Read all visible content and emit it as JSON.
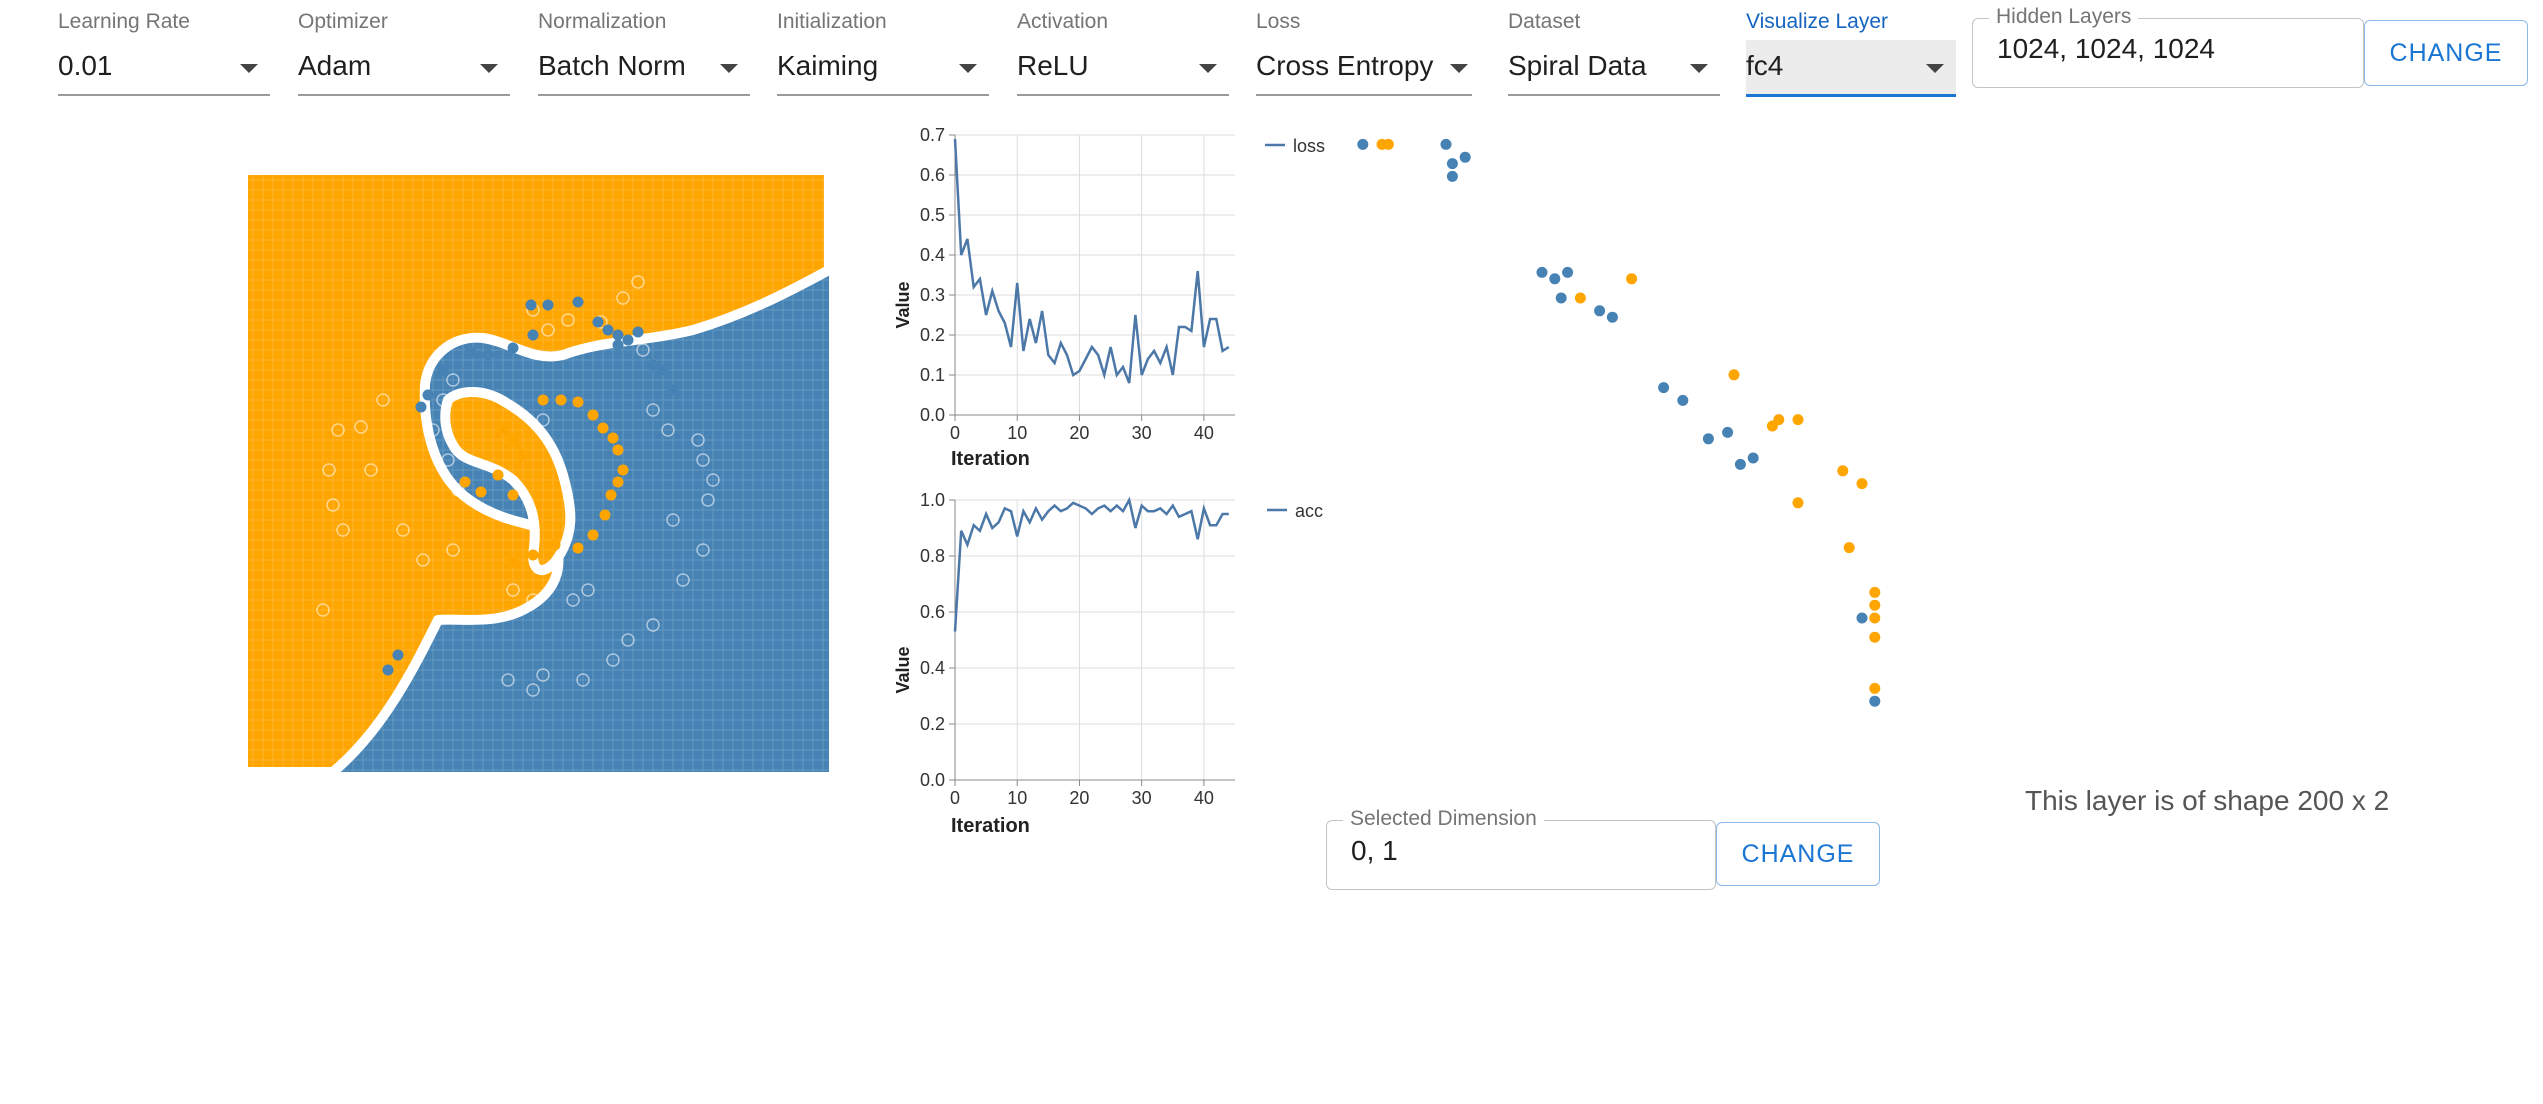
{
  "controls": [
    {
      "label": "Learning Rate",
      "value": "0.01"
    },
    {
      "label": "Optimizer",
      "value": "Adam"
    },
    {
      "label": "Normalization",
      "value": "Batch Norm"
    },
    {
      "label": "Initialization",
      "value": "Kaiming"
    },
    {
      "label": "Activation",
      "value": "ReLU"
    },
    {
      "label": "Loss",
      "value": "Cross Entropy"
    },
    {
      "label": "Dataset",
      "value": "Spiral Data"
    },
    {
      "label": "Visualize Layer",
      "value": "fc4"
    }
  ],
  "hidden_layers": {
    "label": "Hidden Layers",
    "value": "1024, 1024, 1024",
    "button": "CHANGE"
  },
  "selected_dimension": {
    "label": "Selected Dimension",
    "value": "0, 1",
    "button": "CHANGE"
  },
  "layer_shape_text": "This layer is of shape 200 x 2",
  "colors": {
    "class0": "#4682b4",
    "class1": "#ffa500",
    "accent": "#1976d2",
    "line": "#4c78a8"
  },
  "chart_data": [
    {
      "type": "line",
      "name": "loss-chart",
      "legend": [
        "loss"
      ],
      "xlabel": "Iteration",
      "ylabel": "Value",
      "xlim": [
        0,
        45
      ],
      "ylim": [
        0,
        0.7
      ],
      "xticks": [
        0,
        10,
        20,
        30,
        40
      ],
      "yticks": [
        0.0,
        0.1,
        0.2,
        0.3,
        0.4,
        0.5,
        0.6,
        0.7
      ],
      "tick_labels_y": [
        "0.0",
        "0.1",
        "0.2",
        "0.3",
        "0.4",
        "0.5",
        "0.6",
        "0.7"
      ],
      "grid": true,
      "series": [
        {
          "name": "loss",
          "values": [
            0.69,
            0.4,
            0.44,
            0.32,
            0.34,
            0.25,
            0.31,
            0.26,
            0.23,
            0.17,
            0.33,
            0.16,
            0.24,
            0.18,
            0.26,
            0.15,
            0.13,
            0.18,
            0.15,
            0.1,
            0.11,
            0.14,
            0.17,
            0.15,
            0.1,
            0.17,
            0.1,
            0.12,
            0.08,
            0.25,
            0.1,
            0.14,
            0.16,
            0.13,
            0.17,
            0.1,
            0.22,
            0.22,
            0.21,
            0.36,
            0.17,
            0.24,
            0.24,
            0.16,
            0.17
          ]
        }
      ]
    },
    {
      "type": "line",
      "name": "acc-chart",
      "legend": [
        "acc"
      ],
      "xlabel": "Iteration",
      "ylabel": "Value",
      "xlim": [
        0,
        45
      ],
      "ylim": [
        0,
        1.0
      ],
      "xticks": [
        0,
        10,
        20,
        30,
        40
      ],
      "yticks": [
        0.0,
        0.2,
        0.4,
        0.6,
        0.8,
        1.0
      ],
      "tick_labels_y": [
        "0.0",
        "0.2",
        "0.4",
        "0.6",
        "0.8",
        "1.0"
      ],
      "grid": true,
      "series": [
        {
          "name": "acc",
          "values": [
            0.53,
            0.89,
            0.84,
            0.91,
            0.89,
            0.95,
            0.9,
            0.92,
            0.97,
            0.96,
            0.87,
            0.96,
            0.92,
            0.97,
            0.93,
            0.96,
            0.98,
            0.96,
            0.97,
            0.99,
            0.98,
            0.97,
            0.95,
            0.97,
            0.98,
            0.96,
            0.98,
            0.96,
            1.0,
            0.9,
            0.98,
            0.96,
            0.96,
            0.97,
            0.95,
            0.98,
            0.94,
            0.95,
            0.96,
            0.86,
            0.97,
            0.91,
            0.91,
            0.95,
            0.95
          ]
        }
      ]
    },
    {
      "type": "scatter",
      "name": "layer-activation-scatter",
      "points": [
        {
          "x": 0.02,
          "y": 0.99,
          "c": 0
        },
        {
          "x": 0.05,
          "y": 0.99,
          "c": 1
        },
        {
          "x": 0.06,
          "y": 0.99,
          "c": 1
        },
        {
          "x": 0.15,
          "y": 0.99,
          "c": 0
        },
        {
          "x": 0.16,
          "y": 0.96,
          "c": 0
        },
        {
          "x": 0.18,
          "y": 0.97,
          "c": 0
        },
        {
          "x": 0.16,
          "y": 0.94,
          "c": 0
        },
        {
          "x": 0.3,
          "y": 0.79,
          "c": 0
        },
        {
          "x": 0.32,
          "y": 0.78,
          "c": 0
        },
        {
          "x": 0.34,
          "y": 0.79,
          "c": 0
        },
        {
          "x": 0.33,
          "y": 0.75,
          "c": 0
        },
        {
          "x": 0.36,
          "y": 0.75,
          "c": 1
        },
        {
          "x": 0.39,
          "y": 0.73,
          "c": 0
        },
        {
          "x": 0.41,
          "y": 0.72,
          "c": 0
        },
        {
          "x": 0.44,
          "y": 0.78,
          "c": 1
        },
        {
          "x": 0.49,
          "y": 0.61,
          "c": 0
        },
        {
          "x": 0.52,
          "y": 0.59,
          "c": 0
        },
        {
          "x": 0.56,
          "y": 0.53,
          "c": 0
        },
        {
          "x": 0.59,
          "y": 0.54,
          "c": 0
        },
        {
          "x": 0.6,
          "y": 0.63,
          "c": 1
        },
        {
          "x": 0.61,
          "y": 0.49,
          "c": 0
        },
        {
          "x": 0.63,
          "y": 0.5,
          "c": 0
        },
        {
          "x": 0.66,
          "y": 0.55,
          "c": 1
        },
        {
          "x": 0.67,
          "y": 0.56,
          "c": 1
        },
        {
          "x": 0.7,
          "y": 0.56,
          "c": 1
        },
        {
          "x": 0.7,
          "y": 0.43,
          "c": 1
        },
        {
          "x": 0.77,
          "y": 0.48,
          "c": 1
        },
        {
          "x": 0.8,
          "y": 0.46,
          "c": 1
        },
        {
          "x": 0.78,
          "y": 0.36,
          "c": 1
        },
        {
          "x": 0.8,
          "y": 0.25,
          "c": 0
        },
        {
          "x": 0.82,
          "y": 0.29,
          "c": 1
        },
        {
          "x": 0.82,
          "y": 0.27,
          "c": 1
        },
        {
          "x": 0.82,
          "y": 0.25,
          "c": 1
        },
        {
          "x": 0.82,
          "y": 0.22,
          "c": 1
        },
        {
          "x": 0.82,
          "y": 0.14,
          "c": 1
        },
        {
          "x": 0.82,
          "y": 0.12,
          "c": 0
        }
      ]
    }
  ]
}
